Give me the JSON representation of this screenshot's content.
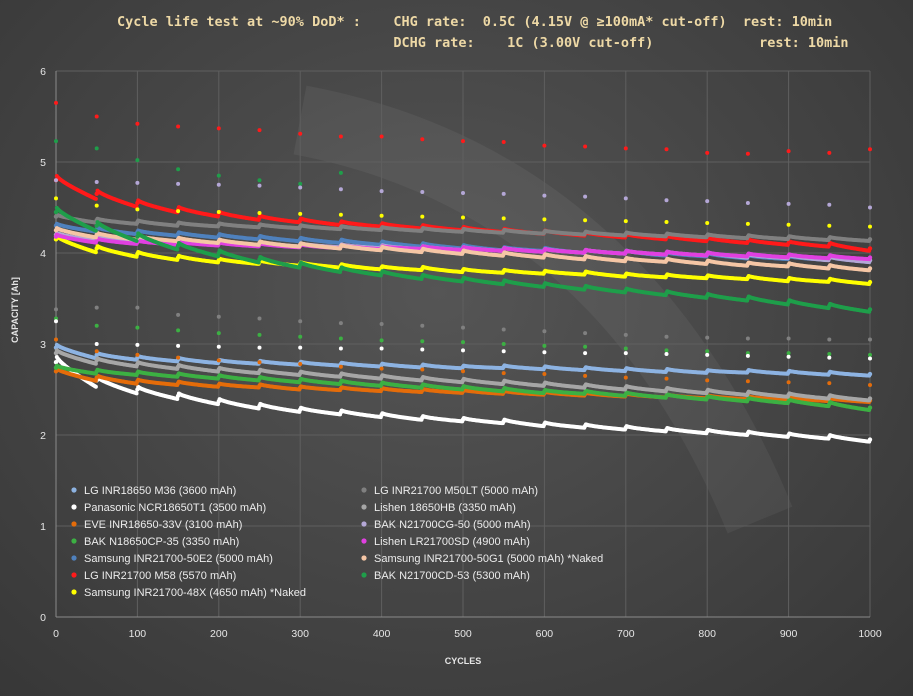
{
  "chart_data": {
    "type": "scatter",
    "title_lines": [
      "Cycle life test at ~90% DoD* :    CHG rate:  0.5C (4.15V @ ≥100mA* cut-off)  rest: 10min",
      "                                  DCHG rate:    1C (3.00V cut-off)             rest: 10min"
    ],
    "xlabel": "CYCLES",
    "ylabel": "CAPACITY [Ah]",
    "xlim": [
      0,
      1000
    ],
    "ylim": [
      0,
      6
    ],
    "x_ticks": [
      0,
      100,
      200,
      300,
      400,
      500,
      600,
      700,
      800,
      900,
      1000
    ],
    "y_ticks": [
      0,
      1,
      2,
      3,
      4,
      5,
      6
    ],
    "grid": true,
    "legend_position": "bottom-left",
    "series": [
      {
        "name": "LG INR18650 M36 (3600 mAh)",
        "color": "#8db3e2",
        "x": [
          0,
          50,
          100,
          150,
          200,
          250,
          300,
          350,
          400,
          450,
          500,
          550,
          600,
          650,
          700,
          750,
          800,
          850,
          900,
          950,
          1000
        ],
        "y": [
          2.96,
          2.88,
          2.85,
          2.83,
          2.81,
          2.8,
          2.79,
          2.78,
          2.77,
          2.76,
          2.75,
          2.75,
          2.74,
          2.73,
          2.72,
          2.71,
          2.7,
          2.7,
          2.69,
          2.68,
          2.67
        ]
      },
      {
        "name": "Panasonic NCR18650T1 (3500 mAh)",
        "color": "#ffffff",
        "x": [
          0,
          50,
          100,
          150,
          200,
          250,
          300,
          350,
          400,
          450,
          500,
          550,
          600,
          650,
          700,
          750,
          800,
          850,
          900,
          950,
          1000
        ],
        "y": [
          2.8,
          2.6,
          2.5,
          2.43,
          2.37,
          2.32,
          2.28,
          2.25,
          2.22,
          2.19,
          2.17,
          2.15,
          2.12,
          2.1,
          2.08,
          2.06,
          2.04,
          2.02,
          2.0,
          1.98,
          1.95
        ]
      },
      {
        "name": "EVE INR18650-33V (3100 mAh)",
        "color": "#e46c0a",
        "x": [
          0,
          50,
          100,
          150,
          200,
          250,
          300,
          350,
          400,
          450,
          500,
          550,
          600,
          650,
          700,
          750,
          800,
          850,
          900,
          950,
          1000
        ],
        "y": [
          2.7,
          2.63,
          2.59,
          2.57,
          2.55,
          2.54,
          2.52,
          2.51,
          2.5,
          2.49,
          2.48,
          2.47,
          2.46,
          2.45,
          2.44,
          2.43,
          2.42,
          2.41,
          2.4,
          2.39,
          2.38
        ]
      },
      {
        "name": "BAK N18650CP-35 (3350 mAh)",
        "color": "#3cb043",
        "x": [
          0,
          50,
          100,
          150,
          200,
          250,
          300,
          350,
          400,
          450,
          500,
          550,
          600,
          650,
          700,
          750,
          800,
          850,
          900,
          950,
          1000
        ],
        "y": [
          2.74,
          2.7,
          2.68,
          2.66,
          2.64,
          2.62,
          2.6,
          2.58,
          2.56,
          2.54,
          2.52,
          2.5,
          2.48,
          2.47,
          2.45,
          2.43,
          2.41,
          2.39,
          2.37,
          2.34,
          2.3
        ]
      },
      {
        "name": "Samsung INR21700-50E2 (5000 mAh)",
        "color": "#4f81bd",
        "x": [
          0,
          50,
          100,
          150,
          200,
          250,
          300,
          350,
          400,
          450,
          500,
          550,
          600,
          650,
          700,
          750,
          800,
          850,
          900,
          950,
          1000
        ],
        "y": [
          4.3,
          4.26,
          4.23,
          4.21,
          4.19,
          4.17,
          4.15,
          4.13,
          4.11,
          4.09,
          4.07,
          4.05,
          4.04,
          4.02,
          4.01,
          3.99,
          3.98,
          3.96,
          3.95,
          3.94,
          3.92
        ]
      },
      {
        "name": "LG INR21700 M58 (5570 mAh)",
        "color": "#ff1a1a",
        "x": [
          0,
          50,
          100,
          150,
          200,
          250,
          300,
          350,
          400,
          450,
          500,
          550,
          600,
          650,
          700,
          750,
          800,
          850,
          900,
          950,
          1000
        ],
        "y": [
          4.8,
          4.65,
          4.55,
          4.48,
          4.43,
          4.39,
          4.36,
          4.33,
          4.31,
          4.29,
          4.27,
          4.25,
          4.23,
          4.21,
          4.19,
          4.17,
          4.15,
          4.13,
          4.11,
          4.09,
          4.05
        ]
      },
      {
        "name": "Samsung INR21700-48X (4650 mAh) *Naked",
        "color": "#ffff00",
        "x": [
          0,
          50,
          100,
          150,
          200,
          250,
          300,
          350,
          400,
          450,
          500,
          550,
          600,
          650,
          700,
          750,
          800,
          850,
          900,
          950,
          1000
        ],
        "y": [
          4.15,
          4.05,
          3.99,
          3.95,
          3.92,
          3.9,
          3.88,
          3.86,
          3.84,
          3.83,
          3.81,
          3.8,
          3.79,
          3.78,
          3.76,
          3.75,
          3.74,
          3.73,
          3.71,
          3.7,
          3.68
        ]
      },
      {
        "name": "LG INR21700 M50LT (5000 mAh)",
        "color": "#808080",
        "x": [
          0,
          50,
          100,
          150,
          200,
          250,
          300,
          350,
          400,
          450,
          500,
          550,
          600,
          650,
          700,
          750,
          800,
          850,
          900,
          950,
          1000
        ],
        "y": [
          4.4,
          4.36,
          4.34,
          4.32,
          4.31,
          4.3,
          4.29,
          4.28,
          4.27,
          4.26,
          4.25,
          4.24,
          4.23,
          4.22,
          4.21,
          4.2,
          4.19,
          4.18,
          4.17,
          4.16,
          4.15
        ]
      },
      {
        "name": "Lishen 18650HB (3350 mAh)",
        "color": "#a6a6a6",
        "x": [
          0,
          50,
          100,
          150,
          200,
          250,
          300,
          350,
          400,
          450,
          500,
          550,
          600,
          650,
          700,
          750,
          800,
          850,
          900,
          950,
          1000
        ],
        "y": [
          2.9,
          2.82,
          2.78,
          2.75,
          2.72,
          2.7,
          2.68,
          2.66,
          2.64,
          2.62,
          2.6,
          2.58,
          2.56,
          2.54,
          2.52,
          2.5,
          2.48,
          2.46,
          2.44,
          2.42,
          2.4
        ]
      },
      {
        "name": "BAK N21700CG-50 (5000 mAh)",
        "color": "#b4a7d6",
        "x": [
          0,
          50,
          100,
          150,
          200,
          250,
          300,
          350,
          400,
          450,
          500,
          550,
          600,
          650,
          700,
          750,
          800,
          850,
          900,
          950,
          1000
        ],
        "y": [
          4.2,
          4.16,
          4.14,
          4.12,
          4.11,
          4.1,
          4.09,
          4.08,
          4.07,
          4.06,
          4.05,
          4.04,
          4.03,
          4.02,
          4.01,
          4.0,
          3.99,
          3.97,
          3.96,
          3.94,
          3.92
        ]
      },
      {
        "name": "Lishen LR21700SD (4900 mAh)",
        "color": "#e040e0",
        "x": [
          0,
          50,
          100,
          150,
          200,
          250,
          300,
          350,
          400,
          450,
          500,
          550,
          600,
          650,
          700,
          750,
          800,
          850,
          900,
          950,
          1000
        ],
        "y": [
          4.18,
          4.14,
          4.12,
          4.11,
          4.1,
          4.09,
          4.08,
          4.07,
          4.06,
          4.06,
          4.05,
          4.04,
          4.03,
          4.02,
          4.01,
          4.0,
          3.99,
          3.98,
          3.97,
          3.96,
          3.95
        ]
      },
      {
        "name": "Samsung INR21700-50G1 (5000 mAh) *Naked",
        "color": "#f5c6a5",
        "x": [
          0,
          50,
          100,
          150,
          200,
          250,
          300,
          350,
          400,
          450,
          500,
          550,
          600,
          650,
          700,
          750,
          800,
          850,
          900,
          950,
          1000
        ],
        "y": [
          4.25,
          4.2,
          4.17,
          4.15,
          4.13,
          4.11,
          4.09,
          4.07,
          4.05,
          4.03,
          4.01,
          3.99,
          3.97,
          3.95,
          3.93,
          3.92,
          3.9,
          3.88,
          3.87,
          3.85,
          3.83
        ]
      },
      {
        "name": "BAK N21700CD-53 (5300 mAh)",
        "color": "#1f9e4a",
        "x": [
          0,
          50,
          100,
          150,
          200,
          250,
          300,
          350,
          400,
          450,
          500,
          550,
          600,
          650,
          700,
          750,
          800,
          850,
          900,
          950,
          1000
        ],
        "y": [
          4.45,
          4.3,
          4.18,
          4.08,
          4.0,
          3.93,
          3.87,
          3.82,
          3.78,
          3.74,
          3.71,
          3.68,
          3.65,
          3.62,
          3.59,
          3.56,
          3.53,
          3.5,
          3.46,
          3.42,
          3.38
        ]
      }
    ],
    "capacity_check_points": [
      {
        "color": "#ff1a1a",
        "x": [
          0,
          50,
          100,
          150,
          200,
          250,
          300,
          350,
          400,
          450,
          500,
          550,
          600,
          650,
          700,
          750,
          800,
          850,
          900,
          950,
          1000
        ],
        "y": [
          5.65,
          5.5,
          5.42,
          5.39,
          5.37,
          5.35,
          5.31,
          5.28,
          5.28,
          5.25,
          5.23,
          5.22,
          5.18,
          5.17,
          5.15,
          5.14,
          5.1,
          5.09,
          5.12,
          5.1,
          5.14
        ]
      },
      {
        "color": "#1f9e4a",
        "x": [
          0,
          50,
          100,
          150,
          200,
          250,
          300,
          350
        ],
        "y": [
          5.23,
          5.15,
          5.02,
          4.92,
          4.85,
          4.8,
          4.76,
          4.88
        ]
      },
      {
        "color": "#b4a7d6",
        "x": [
          0,
          50,
          100,
          150,
          200,
          250,
          300,
          350,
          400,
          450,
          500,
          550,
          600,
          650,
          700,
          750,
          800,
          850,
          900,
          950,
          1000
        ],
        "y": [
          4.8,
          4.78,
          4.77,
          4.76,
          4.75,
          4.74,
          4.72,
          4.7,
          4.68,
          4.67,
          4.66,
          4.65,
          4.63,
          4.62,
          4.6,
          4.58,
          4.57,
          4.55,
          4.54,
          4.53,
          4.5
        ]
      },
      {
        "color": "#808080",
        "x": [
          0,
          50,
          100,
          150,
          200,
          250,
          300,
          350,
          400,
          450,
          500,
          550,
          600,
          650,
          700,
          750,
          800,
          850,
          900,
          950,
          1000
        ],
        "y": [
          3.38,
          3.4,
          3.4,
          3.32,
          3.3,
          3.28,
          3.25,
          3.23,
          3.22,
          3.2,
          3.18,
          3.16,
          3.14,
          3.12,
          3.1,
          3.08,
          3.07,
          3.06,
          3.06,
          3.05,
          3.05
        ]
      },
      {
        "color": "#3cb043",
        "x": [
          0,
          50,
          100,
          150,
          200,
          250,
          300,
          350,
          400,
          450,
          500,
          550,
          600,
          650,
          700,
          750,
          800,
          850,
          900,
          950,
          1000
        ],
        "y": [
          3.28,
          3.2,
          3.18,
          3.15,
          3.12,
          3.1,
          3.08,
          3.06,
          3.04,
          3.03,
          3.02,
          3.0,
          2.98,
          2.97,
          2.95,
          2.93,
          2.92,
          2.9,
          2.9,
          2.89,
          2.88
        ]
      },
      {
        "color": "#ffffff",
        "x": [
          0,
          50,
          100,
          150,
          200,
          250,
          300,
          350,
          400,
          450,
          500,
          550,
          600,
          650,
          700,
          750,
          800,
          850,
          900,
          950,
          1000
        ],
        "y": [
          3.25,
          3.0,
          2.99,
          2.98,
          2.97,
          2.96,
          2.96,
          2.95,
          2.95,
          2.94,
          2.93,
          2.92,
          2.91,
          2.9,
          2.9,
          2.89,
          2.88,
          2.87,
          2.86,
          2.85,
          2.84
        ]
      },
      {
        "color": "#e46c0a",
        "x": [
          0,
          50,
          100,
          150,
          200,
          250,
          300,
          350,
          400,
          450,
          500,
          550,
          600,
          650,
          700,
          750,
          800,
          850,
          900,
          950,
          1000
        ],
        "y": [
          3.05,
          2.92,
          2.88,
          2.85,
          2.82,
          2.8,
          2.78,
          2.75,
          2.73,
          2.72,
          2.7,
          2.68,
          2.67,
          2.65,
          2.63,
          2.62,
          2.6,
          2.59,
          2.58,
          2.57,
          2.55
        ]
      },
      {
        "color": "#ffff00",
        "x": [
          0,
          50,
          100,
          150,
          200,
          250,
          300,
          350,
          400,
          450,
          500,
          550,
          600,
          650,
          700,
          750,
          800,
          850,
          900,
          950,
          1000
        ],
        "y": [
          4.6,
          4.52,
          4.48,
          4.46,
          4.45,
          4.44,
          4.43,
          4.42,
          4.41,
          4.4,
          4.39,
          4.38,
          4.37,
          4.36,
          4.35,
          4.34,
          4.33,
          4.32,
          4.31,
          4.3,
          4.29
        ]
      }
    ]
  }
}
